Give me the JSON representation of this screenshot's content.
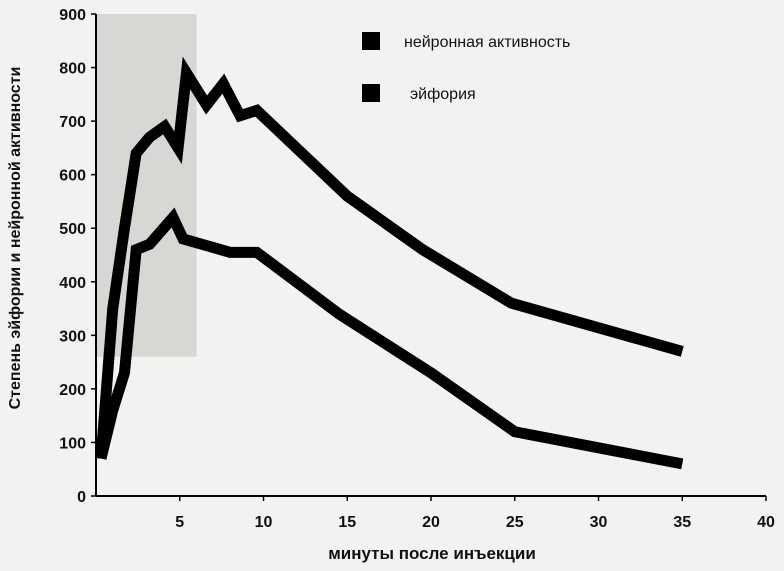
{
  "chart_data": {
    "type": "line",
    "title": "",
    "xlabel": "минуты после инъекции",
    "ylabel": "Степень эйфории и нейронной активности",
    "xlim": [
      0,
      40
    ],
    "ylim": [
      0,
      900
    ],
    "x_ticks": [
      "5",
      "10",
      "15",
      "20",
      "25",
      "30",
      "35",
      "40"
    ],
    "y_ticks": [
      "0",
      "100",
      "200",
      "300",
      "400",
      "500",
      "600",
      "700",
      "800",
      "900"
    ],
    "grid": false,
    "legend_position": "top-right",
    "shaded_x_range": [
      0,
      6
    ],
    "series": [
      {
        "name": "нейронная активность",
        "color": "#000000",
        "points": [
          [
            0.3,
            70
          ],
          [
            1,
            350
          ],
          [
            1.7,
            500
          ],
          [
            2.4,
            640
          ],
          [
            3.2,
            670
          ],
          [
            4.1,
            690
          ],
          [
            4.9,
            650
          ],
          [
            5.4,
            790
          ],
          [
            6.6,
            730
          ],
          [
            7.6,
            770
          ],
          [
            8.6,
            710
          ],
          [
            9.6,
            720
          ],
          [
            15,
            560
          ],
          [
            19.5,
            460
          ],
          [
            24.8,
            360
          ],
          [
            35,
            270
          ]
        ]
      },
      {
        "name": "эйфория",
        "color": "#000000",
        "points": [
          [
            0.3,
            70
          ],
          [
            1,
            160
          ],
          [
            1.7,
            230
          ],
          [
            2.4,
            460
          ],
          [
            3.2,
            470
          ],
          [
            4.6,
            520
          ],
          [
            5.2,
            480
          ],
          [
            8,
            455
          ],
          [
            9.6,
            455
          ],
          [
            14.5,
            340
          ],
          [
            20,
            230
          ],
          [
            25,
            120
          ],
          [
            35,
            60
          ]
        ]
      }
    ]
  }
}
